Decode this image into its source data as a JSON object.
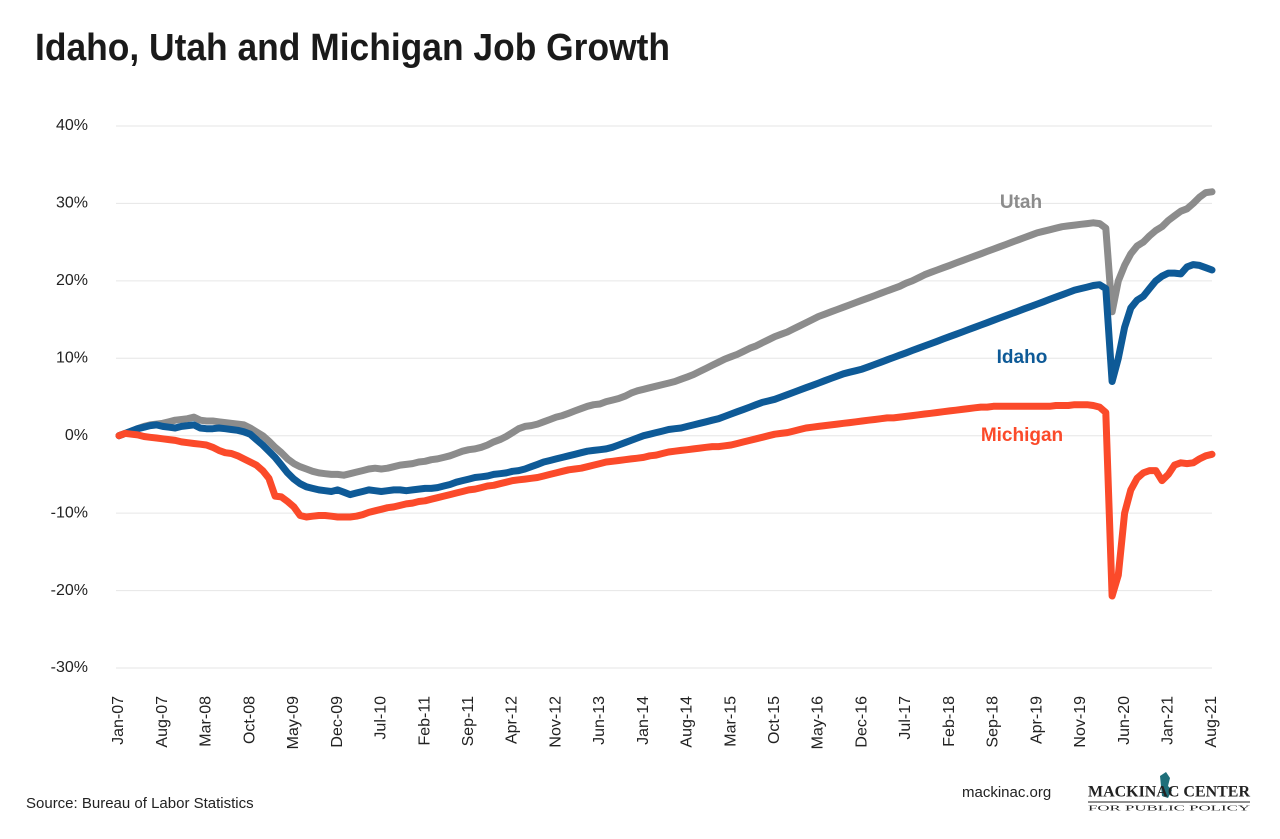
{
  "chart_data": {
    "type": "line",
    "title": "Idaho, Utah and Michigan Job Growth",
    "categories": [
      "Jan-07",
      null,
      null,
      null,
      null,
      null,
      null,
      "Aug-07",
      null,
      null,
      null,
      null,
      null,
      null,
      "Mar-08",
      null,
      null,
      null,
      null,
      null,
      null,
      "Oct-08",
      null,
      null,
      null,
      null,
      null,
      null,
      "May-09",
      null,
      null,
      null,
      null,
      null,
      null,
      "Dec-09",
      null,
      null,
      null,
      null,
      null,
      null,
      "Jul-10",
      null,
      null,
      null,
      null,
      null,
      null,
      "Feb-11",
      null,
      null,
      null,
      null,
      null,
      null,
      "Sep-11",
      null,
      null,
      null,
      null,
      null,
      null,
      "Apr-12",
      null,
      null,
      null,
      null,
      null,
      null,
      "Nov-12",
      null,
      null,
      null,
      null,
      null,
      null,
      "Jun-13",
      null,
      null,
      null,
      null,
      null,
      null,
      "Jan-14",
      null,
      null,
      null,
      null,
      null,
      null,
      "Aug-14",
      null,
      null,
      null,
      null,
      null,
      null,
      "Mar-15",
      null,
      null,
      null,
      null,
      null,
      null,
      "Oct-15",
      null,
      null,
      null,
      null,
      null,
      null,
      "May-16",
      null,
      null,
      null,
      null,
      null,
      null,
      "Dec-16",
      null,
      null,
      null,
      null,
      null,
      null,
      "Jul-17",
      null,
      null,
      null,
      null,
      null,
      null,
      "Feb-18",
      null,
      null,
      null,
      null,
      null,
      null,
      "Sep-18",
      null,
      null,
      null,
      null,
      null,
      null,
      "Apr-19",
      null,
      null,
      null,
      null,
      null,
      null,
      "Nov-19",
      null,
      null,
      null,
      null,
      null,
      null,
      "Jun-20",
      null,
      null,
      null,
      null,
      null,
      null,
      "Jan-21",
      null,
      null,
      null,
      null,
      null,
      null,
      "Aug-21"
    ],
    "series": [
      {
        "name": "Utah",
        "color": "#8c8c8c",
        "values": [
          0,
          0.3,
          0.6,
          0.9,
          1.2,
          1.4,
          1.5,
          1.6,
          1.8,
          2.0,
          2.1,
          2.2,
          2.4,
          2.0,
          1.9,
          1.9,
          1.8,
          1.7,
          1.6,
          1.5,
          1.4,
          1.0,
          0.5,
          0,
          -0.7,
          -1.5,
          -2.2,
          -3.0,
          -3.6,
          -4.0,
          -4.3,
          -4.6,
          -4.8,
          -4.9,
          -5.0,
          -5.0,
          -5.1,
          -4.9,
          -4.7,
          -4.5,
          -4.3,
          -4.2,
          -4.3,
          -4.2,
          -4.0,
          -3.8,
          -3.7,
          -3.6,
          -3.4,
          -3.3,
          -3.1,
          -3.0,
          -2.8,
          -2.6,
          -2.3,
          -2.0,
          -1.8,
          -1.7,
          -1.5,
          -1.2,
          -0.8,
          -0.5,
          -0.1,
          0.4,
          0.9,
          1.2,
          1.3,
          1.5,
          1.8,
          2.1,
          2.4,
          2.6,
          2.9,
          3.2,
          3.5,
          3.8,
          4.0,
          4.1,
          4.4,
          4.6,
          4.8,
          5.1,
          5.5,
          5.8,
          6.0,
          6.2,
          6.4,
          6.6,
          6.8,
          7.0,
          7.3,
          7.6,
          7.9,
          8.3,
          8.7,
          9.1,
          9.5,
          9.9,
          10.2,
          10.5,
          10.9,
          11.3,
          11.6,
          12.0,
          12.4,
          12.8,
          13.1,
          13.4,
          13.8,
          14.2,
          14.6,
          15.0,
          15.4,
          15.7,
          16.0,
          16.3,
          16.6,
          16.9,
          17.2,
          17.5,
          17.8,
          18.1,
          18.4,
          18.7,
          19.0,
          19.3,
          19.7,
          20.0,
          20.4,
          20.8,
          21.1,
          21.4,
          21.7,
          22.0,
          22.3,
          22.6,
          22.9,
          23.2,
          23.5,
          23.8,
          24.1,
          24.4,
          24.7,
          25.0,
          25.3,
          25.6,
          25.9,
          26.2,
          26.4,
          26.6,
          26.8,
          27.0,
          27.1,
          27.2,
          27.3,
          27.4,
          27.5,
          27.4,
          26.8,
          16.0,
          20.0,
          22.0,
          23.5,
          24.5,
          25.0,
          25.8,
          26.5,
          27.0,
          27.8,
          28.4,
          29.0,
          29.3,
          30.0,
          30.8,
          31.4,
          31.5
        ]
      },
      {
        "name": "Idaho",
        "color": "#0e5a97",
        "values": [
          0,
          0.3,
          0.6,
          0.9,
          1.1,
          1.3,
          1.4,
          1.2,
          1.1,
          1.0,
          1.2,
          1.3,
          1.4,
          1.0,
          0.9,
          0.9,
          1.0,
          0.9,
          0.8,
          0.7,
          0.5,
          0.2,
          -0.5,
          -1.2,
          -2.0,
          -2.8,
          -3.8,
          -4.8,
          -5.6,
          -6.2,
          -6.6,
          -6.8,
          -7.0,
          -7.1,
          -7.2,
          -7.0,
          -7.3,
          -7.6,
          -7.4,
          -7.2,
          -7.0,
          -7.1,
          -7.2,
          -7.1,
          -7.0,
          -7.0,
          -7.1,
          -7.0,
          -6.9,
          -6.8,
          -6.8,
          -6.7,
          -6.5,
          -6.3,
          -6.0,
          -5.8,
          -5.6,
          -5.4,
          -5.3,
          -5.2,
          -5.0,
          -4.9,
          -4.8,
          -4.6,
          -4.5,
          -4.3,
          -4.0,
          -3.7,
          -3.4,
          -3.2,
          -3.0,
          -2.8,
          -2.6,
          -2.4,
          -2.2,
          -2.0,
          -1.9,
          -1.8,
          -1.7,
          -1.5,
          -1.2,
          -0.9,
          -0.6,
          -0.3,
          0,
          0.2,
          0.4,
          0.6,
          0.8,
          0.9,
          1.0,
          1.2,
          1.4,
          1.6,
          1.8,
          2.0,
          2.2,
          2.5,
          2.8,
          3.1,
          3.4,
          3.7,
          4.0,
          4.3,
          4.5,
          4.7,
          5.0,
          5.3,
          5.6,
          5.9,
          6.2,
          6.5,
          6.8,
          7.1,
          7.4,
          7.7,
          8.0,
          8.2,
          8.4,
          8.6,
          8.9,
          9.2,
          9.5,
          9.8,
          10.1,
          10.4,
          10.7,
          11.0,
          11.3,
          11.6,
          11.9,
          12.2,
          12.5,
          12.8,
          13.1,
          13.4,
          13.7,
          14.0,
          14.3,
          14.6,
          14.9,
          15.2,
          15.5,
          15.8,
          16.1,
          16.4,
          16.7,
          17.0,
          17.3,
          17.6,
          17.9,
          18.2,
          18.5,
          18.8,
          19.0,
          19.2,
          19.4,
          19.5,
          19.0,
          7.0,
          10.0,
          14.0,
          16.5,
          17.5,
          18.0,
          19.0,
          20.0,
          20.6,
          21.0,
          21.0,
          20.9,
          21.8,
          22.1,
          22.0,
          21.7,
          21.4
        ]
      },
      {
        "name": "Michigan",
        "color": "#fb4a2a",
        "values": [
          0,
          0.3,
          0.2,
          0.1,
          -0.1,
          -0.2,
          -0.3,
          -0.4,
          -0.5,
          -0.6,
          -0.8,
          -0.9,
          -1.0,
          -1.1,
          -1.2,
          -1.5,
          -1.9,
          -2.2,
          -2.3,
          -2.6,
          -3.0,
          -3.4,
          -3.8,
          -4.5,
          -5.5,
          -7.8,
          -7.9,
          -8.5,
          -9.2,
          -10.3,
          -10.5,
          -10.4,
          -10.3,
          -10.3,
          -10.4,
          -10.5,
          -10.5,
          -10.5,
          -10.4,
          -10.2,
          -9.9,
          -9.7,
          -9.5,
          -9.3,
          -9.2,
          -9.0,
          -8.8,
          -8.7,
          -8.5,
          -8.4,
          -8.2,
          -8.0,
          -7.8,
          -7.6,
          -7.4,
          -7.2,
          -7.0,
          -6.9,
          -6.7,
          -6.5,
          -6.4,
          -6.2,
          -6.0,
          -5.8,
          -5.7,
          -5.6,
          -5.5,
          -5.4,
          -5.2,
          -5.0,
          -4.8,
          -4.6,
          -4.4,
          -4.3,
          -4.2,
          -4.0,
          -3.8,
          -3.6,
          -3.4,
          -3.3,
          -3.2,
          -3.1,
          -3.0,
          -2.9,
          -2.8,
          -2.6,
          -2.5,
          -2.3,
          -2.1,
          -2.0,
          -1.9,
          -1.8,
          -1.7,
          -1.6,
          -1.5,
          -1.4,
          -1.4,
          -1.3,
          -1.2,
          -1.0,
          -0.8,
          -0.6,
          -0.4,
          -0.2,
          0,
          0.2,
          0.3,
          0.4,
          0.6,
          0.8,
          1.0,
          1.1,
          1.2,
          1.3,
          1.4,
          1.5,
          1.6,
          1.7,
          1.8,
          1.9,
          2.0,
          2.1,
          2.2,
          2.3,
          2.3,
          2.4,
          2.5,
          2.6,
          2.7,
          2.8,
          2.9,
          3.0,
          3.1,
          3.2,
          3.3,
          3.4,
          3.5,
          3.6,
          3.7,
          3.7,
          3.8,
          3.8,
          3.8,
          3.8,
          3.8,
          3.8,
          3.8,
          3.8,
          3.8,
          3.8,
          3.9,
          3.9,
          3.9,
          4.0,
          4.0,
          4.0,
          3.9,
          3.7,
          3.0,
          -20.7,
          -18.0,
          -10.0,
          -7.0,
          -5.5,
          -4.8,
          -4.5,
          -4.5,
          -5.8,
          -5.0,
          -3.8,
          -3.5,
          -3.6,
          -3.5,
          -3.0,
          -2.6,
          -2.4
        ]
      }
    ],
    "ylim": [
      -30,
      40
    ],
    "yticks": [
      {
        "value": -30,
        "label": "-30%"
      },
      {
        "value": -20,
        "label": "-20%"
      },
      {
        "value": -10,
        "label": "-10%"
      },
      {
        "value": 0,
        "label": "0%"
      },
      {
        "value": 10,
        "label": "10%"
      },
      {
        "value": 20,
        "label": "20%"
      },
      {
        "value": 30,
        "label": "30%"
      },
      {
        "value": 40,
        "label": "40%"
      }
    ],
    "grid": true
  },
  "source": "Source: Bureau of Labor Statistics",
  "website": "mackinac.org",
  "logo": {
    "name": "MACKINAC CENTER",
    "tagline": "FOR PUBLIC POLICY"
  }
}
